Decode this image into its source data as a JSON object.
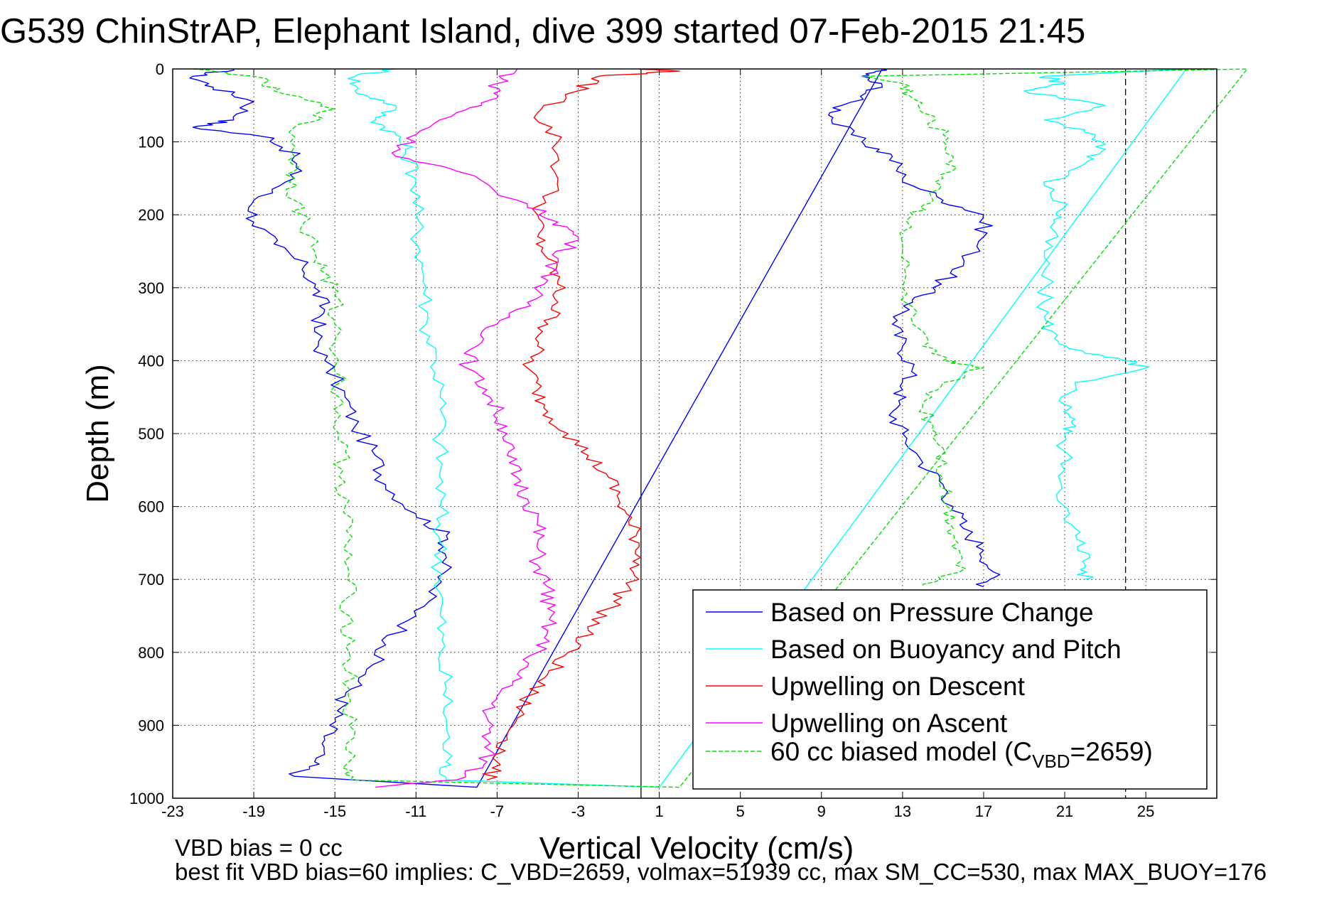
{
  "chart_data": {
    "type": "line",
    "title": "G539 ChinStrAP, Elephant Island, dive 399 started 07-Feb-2015 21:45",
    "xlabel": "Vertical Velocity (cm/s)",
    "ylabel": "Depth (m)",
    "xlim": [
      -23,
      28.5
    ],
    "ylim": [
      0,
      1000
    ],
    "y_reversed": true,
    "xticks": [
      -23,
      -19,
      -15,
      -11,
      -7,
      -3,
      1,
      5,
      9,
      13,
      17,
      21,
      25
    ],
    "yticks": [
      0,
      100,
      200,
      300,
      400,
      500,
      600,
      700,
      800,
      900,
      1000
    ],
    "grid": true,
    "legend_position": "bottom-right",
    "reference_lines": [
      {
        "x": 0.1,
        "style": "solid",
        "color": "#000000"
      },
      {
        "x": 24.0,
        "style": "dashed",
        "color": "#000000"
      }
    ],
    "series": [
      {
        "name": "Based on Pressure Change",
        "color": "#0000ff",
        "style": "solid",
        "points": [
          [
            -20,
            0
          ],
          [
            -22,
            10
          ],
          [
            -21,
            25
          ],
          [
            -19,
            45
          ],
          [
            -20,
            70
          ],
          [
            -22,
            80
          ],
          [
            -18,
            95
          ],
          [
            -17,
            120
          ],
          [
            -17,
            150
          ],
          [
            -19,
            180
          ],
          [
            -19,
            210
          ],
          [
            -18,
            240
          ],
          [
            -16.5,
            270
          ],
          [
            -16,
            300
          ],
          [
            -15.5,
            330
          ],
          [
            -16,
            360
          ],
          [
            -15.5,
            400
          ],
          [
            -14.5,
            450
          ],
          [
            -14,
            490
          ],
          [
            -13,
            530
          ],
          [
            -12.5,
            570
          ],
          [
            -11,
            610
          ],
          [
            -9.5,
            640
          ],
          [
            -9.5,
            670
          ],
          [
            -10,
            710
          ],
          [
            -11,
            750
          ],
          [
            -12.5,
            790
          ],
          [
            -13.5,
            830
          ],
          [
            -14.5,
            860
          ],
          [
            -15,
            890
          ],
          [
            -15.5,
            920
          ],
          [
            -16,
            950
          ],
          [
            -17,
            970
          ],
          [
            -8,
            985
          ],
          [
            12,
            0
          ],
          [
            11,
            10
          ],
          [
            12,
            25
          ],
          [
            10,
            50
          ],
          [
            9.5,
            70
          ],
          [
            11,
            100
          ],
          [
            12.5,
            120
          ],
          [
            13,
            150
          ],
          [
            15,
            180
          ],
          [
            17,
            200
          ],
          [
            17,
            230
          ],
          [
            16,
            270
          ],
          [
            14.5,
            300
          ],
          [
            13.5,
            320
          ],
          [
            12.5,
            350
          ],
          [
            13,
            380
          ],
          [
            13.5,
            410
          ],
          [
            13,
            440
          ],
          [
            12.5,
            470
          ],
          [
            13,
            500
          ],
          [
            14,
            540
          ],
          [
            15,
            570
          ],
          [
            15.5,
            600
          ],
          [
            16,
            630
          ],
          [
            17,
            660
          ],
          [
            17.5,
            690
          ],
          [
            17,
            710
          ]
        ]
      },
      {
        "name": "Based on Buoyancy and Pitch",
        "color": "#00ffff",
        "style": "solid",
        "points": [
          [
            -12,
            0
          ],
          [
            -14,
            10
          ],
          [
            -14,
            30
          ],
          [
            -12,
            50
          ],
          [
            -13,
            70
          ],
          [
            -12,
            90
          ],
          [
            -11.5,
            110
          ],
          [
            -11,
            150
          ],
          [
            -11,
            200
          ],
          [
            -10.8,
            250
          ],
          [
            -10.5,
            300
          ],
          [
            -10.5,
            350
          ],
          [
            -10,
            400
          ],
          [
            -9.8,
            450
          ],
          [
            -9.8,
            500
          ],
          [
            -9.8,
            550
          ],
          [
            -9.8,
            600
          ],
          [
            -9.8,
            650
          ],
          [
            -9.8,
            700
          ],
          [
            -9.8,
            750
          ],
          [
            -9.8,
            800
          ],
          [
            -9.5,
            850
          ],
          [
            -9.5,
            900
          ],
          [
            -9.5,
            950
          ],
          [
            -9.5,
            975
          ],
          [
            1,
            985
          ],
          [
            27,
            0
          ],
          [
            20,
            10
          ],
          [
            21,
            20
          ],
          [
            19,
            30
          ],
          [
            23,
            50
          ],
          [
            20,
            70
          ],
          [
            22.5,
            90
          ],
          [
            23,
            110
          ],
          [
            22,
            130
          ],
          [
            20,
            160
          ],
          [
            21,
            190
          ],
          [
            20.5,
            210
          ],
          [
            20,
            250
          ],
          [
            20,
            300
          ],
          [
            20,
            340
          ],
          [
            20.5,
            370
          ],
          [
            22,
            390
          ],
          [
            24,
            400
          ],
          [
            25,
            410
          ],
          [
            21.5,
            430
          ],
          [
            21,
            460
          ],
          [
            21.5,
            480
          ],
          [
            21,
            500
          ],
          [
            21,
            550
          ],
          [
            21,
            600
          ],
          [
            21,
            620
          ],
          [
            22,
            650
          ],
          [
            22,
            680
          ],
          [
            22,
            700
          ]
        ]
      },
      {
        "name": "Upwelling on Descent",
        "color": "#ff0000",
        "style": "solid",
        "points": [
          [
            0,
            0
          ],
          [
            2,
            3
          ],
          [
            -2,
            10
          ],
          [
            -3,
            30
          ],
          [
            -5,
            60
          ],
          [
            -4,
            100
          ],
          [
            -4,
            150
          ],
          [
            -5,
            200
          ],
          [
            -5,
            230
          ],
          [
            -4.5,
            260
          ],
          [
            -4,
            290
          ],
          [
            -4,
            320
          ],
          [
            -4.5,
            350
          ],
          [
            -5,
            380
          ],
          [
            -5.5,
            410
          ],
          [
            -5,
            440
          ],
          [
            -4.5,
            470
          ],
          [
            -3.5,
            500
          ],
          [
            -2.5,
            530
          ],
          [
            -1.5,
            560
          ],
          [
            -1,
            590
          ],
          [
            -0.5,
            620
          ],
          [
            0,
            650
          ],
          [
            0,
            680
          ],
          [
            -0.5,
            710
          ],
          [
            -1.5,
            740
          ],
          [
            -2.5,
            770
          ],
          [
            -3.5,
            800
          ],
          [
            -4.5,
            830
          ],
          [
            -5.5,
            860
          ],
          [
            -6,
            890
          ],
          [
            -6.5,
            920
          ],
          [
            -7,
            950
          ],
          [
            -7.5,
            975
          ]
        ]
      },
      {
        "name": "Upwelling on Ascent",
        "color": "#ff00ff",
        "style": "solid",
        "points": [
          [
            -6,
            0
          ],
          [
            -7,
            20
          ],
          [
            -7,
            40
          ],
          [
            -9,
            60
          ],
          [
            -11,
            90
          ],
          [
            -12,
            120
          ],
          [
            -9,
            140
          ],
          [
            -6,
            180
          ],
          [
            -4,
            210
          ],
          [
            -3,
            230
          ],
          [
            -4,
            260
          ],
          [
            -4.5,
            290
          ],
          [
            -5.5,
            320
          ],
          [
            -7,
            350
          ],
          [
            -8,
            380
          ],
          [
            -8.5,
            410
          ],
          [
            -7.5,
            440
          ],
          [
            -7,
            470
          ],
          [
            -6.5,
            500
          ],
          [
            -6.5,
            530
          ],
          [
            -6,
            560
          ],
          [
            -5.5,
            590
          ],
          [
            -5,
            620
          ],
          [
            -5,
            650
          ],
          [
            -5,
            680
          ],
          [
            -4.5,
            710
          ],
          [
            -4.5,
            740
          ],
          [
            -4.5,
            770
          ],
          [
            -5,
            800
          ],
          [
            -6,
            830
          ],
          [
            -7,
            860
          ],
          [
            -7.5,
            890
          ],
          [
            -7.5,
            920
          ],
          [
            -7.5,
            950
          ],
          [
            -9,
            975
          ],
          [
            -13,
            985
          ]
        ]
      },
      {
        "name": "60 cc biased model (C",
        "name_subscript": "VBD",
        "name_suffix": "=2659)",
        "color": "#00e000",
        "style": "dashed",
        "points": [
          [
            -22,
            0
          ],
          [
            -19,
            10
          ],
          [
            -18,
            30
          ],
          [
            -15,
            55
          ],
          [
            -17,
            80
          ],
          [
            -17,
            120
          ],
          [
            -17,
            150
          ],
          [
            -17,
            180
          ],
          [
            -16.5,
            210
          ],
          [
            -16,
            250
          ],
          [
            -15.5,
            280
          ],
          [
            -15,
            310
          ],
          [
            -15,
            350
          ],
          [
            -14.8,
            400
          ],
          [
            -14.8,
            450
          ],
          [
            -14.8,
            500
          ],
          [
            -14.6,
            550
          ],
          [
            -14.5,
            600
          ],
          [
            -14.4,
            650
          ],
          [
            -14.4,
            700
          ],
          [
            -14.3,
            750
          ],
          [
            -14.3,
            800
          ],
          [
            -14.3,
            850
          ],
          [
            -14.3,
            900
          ],
          [
            -14.3,
            950
          ],
          [
            -14.3,
            975
          ],
          [
            2,
            985
          ],
          [
            30,
            0
          ],
          [
            11,
            10
          ],
          [
            13,
            20
          ],
          [
            13.5,
            40
          ],
          [
            14,
            60
          ],
          [
            15,
            90
          ],
          [
            15.5,
            120
          ],
          [
            15,
            150
          ],
          [
            14.5,
            180
          ],
          [
            13.5,
            200
          ],
          [
            13,
            250
          ],
          [
            13,
            300
          ],
          [
            13.5,
            350
          ],
          [
            14,
            380
          ],
          [
            15,
            400
          ],
          [
            17,
            410
          ],
          [
            15,
            430
          ],
          [
            14,
            460
          ],
          [
            14.5,
            490
          ],
          [
            15,
            520
          ],
          [
            15,
            560
          ],
          [
            15.2,
            600
          ],
          [
            15.5,
            630
          ],
          [
            15.8,
            660
          ],
          [
            15.8,
            690
          ],
          [
            14,
            710
          ]
        ]
      }
    ]
  },
  "notes": {
    "line1": "VBD bias = 0 cc",
    "line2": "best fit VBD bias=60 implies: C_VBD=2659, volmax=51939 cc, max SM_CC=530, max MAX_BUOY=176"
  }
}
